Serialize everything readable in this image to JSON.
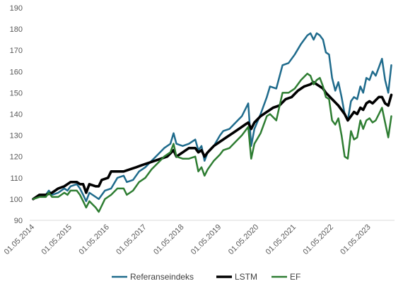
{
  "chart_data": {
    "type": "line",
    "title": "",
    "xlabel": "",
    "ylabel": "",
    "ylim": [
      90,
      190
    ],
    "yticks": [
      90,
      100,
      110,
      120,
      130,
      140,
      150,
      160,
      170,
      180,
      190
    ],
    "xlim": [
      "2014-05-01",
      "2024-01-01"
    ],
    "xticks": [
      "01.05.2014",
      "01.05.2015",
      "01.05.2016",
      "01.05.2017",
      "01.05.2018",
      "01.05.2019",
      "01.05.2020",
      "01.05.2021",
      "01.05.2022",
      "01.05.2023"
    ],
    "grid": false,
    "legend_position": "bottom",
    "series": [
      {
        "name": "Referanseindeks",
        "color": "#1f6b8c",
        "points": [
          [
            "2014-05-01",
            100
          ],
          [
            "2014-07-01",
            102
          ],
          [
            "2014-09-01",
            102
          ],
          [
            "2014-10-01",
            104
          ],
          [
            "2014-11-01",
            102
          ],
          [
            "2015-01-01",
            103
          ],
          [
            "2015-03-01",
            105
          ],
          [
            "2015-04-01",
            104
          ],
          [
            "2015-05-01",
            106
          ],
          [
            "2015-07-01",
            107
          ],
          [
            "2015-08-01",
            105
          ],
          [
            "2015-09-01",
            102
          ],
          [
            "2015-10-01",
            99
          ],
          [
            "2015-11-01",
            103
          ],
          [
            "2016-01-01",
            101
          ],
          [
            "2016-02-01",
            100
          ],
          [
            "2016-04-01",
            104
          ],
          [
            "2016-06-01",
            105
          ],
          [
            "2016-08-01",
            110
          ],
          [
            "2016-10-01",
            111
          ],
          [
            "2016-11-01",
            108
          ],
          [
            "2017-01-01",
            109
          ],
          [
            "2017-03-01",
            113
          ],
          [
            "2017-05-01",
            115
          ],
          [
            "2017-07-01",
            118
          ],
          [
            "2017-09-01",
            121
          ],
          [
            "2017-11-01",
            124
          ],
          [
            "2018-01-01",
            126
          ],
          [
            "2018-02-01",
            131
          ],
          [
            "2018-03-01",
            126
          ],
          [
            "2018-05-01",
            125
          ],
          [
            "2018-07-01",
            126
          ],
          [
            "2018-09-01",
            128
          ],
          [
            "2018-10-01",
            123
          ],
          [
            "2018-11-01",
            125
          ],
          [
            "2018-12-01",
            118
          ],
          [
            "2019-01-01",
            122
          ],
          [
            "2019-03-01",
            125
          ],
          [
            "2019-05-01",
            130
          ],
          [
            "2019-06-01",
            132
          ],
          [
            "2019-08-01",
            133
          ],
          [
            "2019-10-01",
            136
          ],
          [
            "2019-12-01",
            139
          ],
          [
            "2020-02-01",
            145
          ],
          [
            "2020-03-01",
            125
          ],
          [
            "2020-04-01",
            133
          ],
          [
            "2020-06-01",
            140
          ],
          [
            "2020-08-01",
            148
          ],
          [
            "2020-09-01",
            153
          ],
          [
            "2020-11-01",
            152
          ],
          [
            "2021-01-01",
            163
          ],
          [
            "2021-03-01",
            164
          ],
          [
            "2021-05-01",
            168
          ],
          [
            "2021-07-01",
            173
          ],
          [
            "2021-09-01",
            177
          ],
          [
            "2021-10-01",
            178
          ],
          [
            "2021-11-01",
            175
          ],
          [
            "2021-12-01",
            178
          ],
          [
            "2022-01-01",
            177
          ],
          [
            "2022-02-01",
            175
          ],
          [
            "2022-03-01",
            169
          ],
          [
            "2022-04-01",
            168
          ],
          [
            "2022-05-01",
            157
          ],
          [
            "2022-06-01",
            151
          ],
          [
            "2022-07-01",
            155
          ],
          [
            "2022-08-01",
            148
          ],
          [
            "2022-09-01",
            140
          ],
          [
            "2022-10-01",
            137
          ],
          [
            "2022-11-01",
            146
          ],
          [
            "2022-12-01",
            148
          ],
          [
            "2023-01-01",
            147
          ],
          [
            "2023-02-01",
            153
          ],
          [
            "2023-03-01",
            150
          ],
          [
            "2023-04-01",
            157
          ],
          [
            "2023-05-01",
            156
          ],
          [
            "2023-06-01",
            160
          ],
          [
            "2023-07-01",
            158
          ],
          [
            "2023-08-01",
            162
          ],
          [
            "2023-09-01",
            166
          ],
          [
            "2023-10-01",
            156
          ],
          [
            "2023-11-01",
            150
          ],
          [
            "2023-12-01",
            163
          ]
        ]
      },
      {
        "name": "LSTM",
        "color": "#000000",
        "points": [
          [
            "2014-05-01",
            100
          ],
          [
            "2014-07-01",
            102
          ],
          [
            "2014-09-01",
            102
          ],
          [
            "2014-11-01",
            103
          ],
          [
            "2015-01-01",
            105
          ],
          [
            "2015-03-01",
            106
          ],
          [
            "2015-04-01",
            107
          ],
          [
            "2015-05-01",
            108
          ],
          [
            "2015-07-01",
            108
          ],
          [
            "2015-08-01",
            107
          ],
          [
            "2015-09-01",
            107
          ],
          [
            "2015-10-01",
            103
          ],
          [
            "2015-11-01",
            107
          ],
          [
            "2016-01-01",
            106
          ],
          [
            "2016-02-01",
            106
          ],
          [
            "2016-03-01",
            109
          ],
          [
            "2016-05-01",
            110
          ],
          [
            "2016-06-01",
            113
          ],
          [
            "2016-08-01",
            113
          ],
          [
            "2016-10-01",
            113
          ],
          [
            "2016-12-01",
            114
          ],
          [
            "2017-02-01",
            115
          ],
          [
            "2017-04-01",
            116
          ],
          [
            "2017-06-01",
            117
          ],
          [
            "2017-08-01",
            118
          ],
          [
            "2017-10-01",
            119
          ],
          [
            "2017-12-01",
            120
          ],
          [
            "2018-02-01",
            123
          ],
          [
            "2018-03-01",
            120
          ],
          [
            "2018-05-01",
            122
          ],
          [
            "2018-07-01",
            124
          ],
          [
            "2018-09-01",
            124
          ],
          [
            "2018-10-01",
            122
          ],
          [
            "2018-11-01",
            123
          ],
          [
            "2018-12-01",
            120
          ],
          [
            "2019-01-01",
            122
          ],
          [
            "2019-03-01",
            125
          ],
          [
            "2019-05-01",
            127
          ],
          [
            "2019-07-01",
            129
          ],
          [
            "2019-09-01",
            131
          ],
          [
            "2019-11-01",
            133
          ],
          [
            "2020-01-01",
            135
          ],
          [
            "2020-02-01",
            136
          ],
          [
            "2020-03-01",
            133
          ],
          [
            "2020-04-01",
            136
          ],
          [
            "2020-06-01",
            139
          ],
          [
            "2020-08-01",
            141
          ],
          [
            "2020-10-01",
            143
          ],
          [
            "2020-12-01",
            144
          ],
          [
            "2021-02-01",
            147
          ],
          [
            "2021-04-01",
            148
          ],
          [
            "2021-06-01",
            151
          ],
          [
            "2021-08-01",
            153
          ],
          [
            "2021-10-01",
            154
          ],
          [
            "2021-11-01",
            155
          ],
          [
            "2021-12-01",
            154
          ],
          [
            "2022-02-01",
            152
          ],
          [
            "2022-03-01",
            150
          ],
          [
            "2022-05-01",
            147
          ],
          [
            "2022-07-01",
            144
          ],
          [
            "2022-09-01",
            140
          ],
          [
            "2022-10-01",
            137
          ],
          [
            "2022-11-01",
            139
          ],
          [
            "2022-12-01",
            141
          ],
          [
            "2023-01-01",
            140
          ],
          [
            "2023-02-01",
            143
          ],
          [
            "2023-03-01",
            142
          ],
          [
            "2023-04-01",
            145
          ],
          [
            "2023-05-01",
            146
          ],
          [
            "2023-06-01",
            145
          ],
          [
            "2023-08-01",
            148
          ],
          [
            "2023-09-01",
            148
          ],
          [
            "2023-10-01",
            145
          ],
          [
            "2023-11-01",
            144
          ],
          [
            "2023-12-01",
            149
          ]
        ]
      },
      {
        "name": "EF",
        "color": "#2e7d32",
        "points": [
          [
            "2014-05-01",
            100
          ],
          [
            "2014-07-01",
            101
          ],
          [
            "2014-09-01",
            101
          ],
          [
            "2014-10-01",
            103
          ],
          [
            "2014-11-01",
            101
          ],
          [
            "2015-01-01",
            101
          ],
          [
            "2015-03-01",
            103
          ],
          [
            "2015-04-01",
            102
          ],
          [
            "2015-05-01",
            104
          ],
          [
            "2015-07-01",
            104
          ],
          [
            "2015-08-01",
            102
          ],
          [
            "2015-09-01",
            99
          ],
          [
            "2015-10-01",
            96
          ],
          [
            "2015-11-01",
            99
          ],
          [
            "2016-01-01",
            96
          ],
          [
            "2016-02-01",
            94
          ],
          [
            "2016-04-01",
            100
          ],
          [
            "2016-06-01",
            102
          ],
          [
            "2016-08-01",
            105
          ],
          [
            "2016-10-01",
            105
          ],
          [
            "2016-11-01",
            102
          ],
          [
            "2017-01-01",
            104
          ],
          [
            "2017-03-01",
            108
          ],
          [
            "2017-05-01",
            110
          ],
          [
            "2017-07-01",
            114
          ],
          [
            "2017-09-01",
            117
          ],
          [
            "2017-11-01",
            120
          ],
          [
            "2018-01-01",
            122
          ],
          [
            "2018-02-01",
            126
          ],
          [
            "2018-03-01",
            120
          ],
          [
            "2018-05-01",
            119
          ],
          [
            "2018-07-01",
            119
          ],
          [
            "2018-09-01",
            120
          ],
          [
            "2018-10-01",
            113
          ],
          [
            "2018-11-01",
            115
          ],
          [
            "2018-12-01",
            111
          ],
          [
            "2019-01-01",
            114
          ],
          [
            "2019-03-01",
            118
          ],
          [
            "2019-05-01",
            121
          ],
          [
            "2019-06-01",
            123
          ],
          [
            "2019-08-01",
            124
          ],
          [
            "2019-10-01",
            127
          ],
          [
            "2019-12-01",
            130
          ],
          [
            "2020-02-01",
            134
          ],
          [
            "2020-03-01",
            119
          ],
          [
            "2020-04-01",
            126
          ],
          [
            "2020-06-01",
            131
          ],
          [
            "2020-08-01",
            139
          ],
          [
            "2020-09-01",
            140
          ],
          [
            "2020-11-01",
            137
          ],
          [
            "2021-01-01",
            150
          ],
          [
            "2021-03-01",
            150
          ],
          [
            "2021-05-01",
            152
          ],
          [
            "2021-07-01",
            156
          ],
          [
            "2021-09-01",
            159
          ],
          [
            "2021-10-01",
            158
          ],
          [
            "2021-11-01",
            154
          ],
          [
            "2021-12-01",
            156
          ],
          [
            "2022-01-01",
            157
          ],
          [
            "2022-02-01",
            153
          ],
          [
            "2022-03-01",
            148
          ],
          [
            "2022-04-01",
            147
          ],
          [
            "2022-05-01",
            137
          ],
          [
            "2022-06-01",
            135
          ],
          [
            "2022-07-01",
            138
          ],
          [
            "2022-08-01",
            130
          ],
          [
            "2022-09-01",
            120
          ],
          [
            "2022-10-01",
            119
          ],
          [
            "2022-11-01",
            132
          ],
          [
            "2022-12-01",
            128
          ],
          [
            "2023-01-01",
            129
          ],
          [
            "2023-02-01",
            137
          ],
          [
            "2023-03-01",
            133
          ],
          [
            "2023-04-01",
            137
          ],
          [
            "2023-05-01",
            138
          ],
          [
            "2023-06-01",
            136
          ],
          [
            "2023-07-01",
            137
          ],
          [
            "2023-08-01",
            140
          ],
          [
            "2023-09-01",
            143
          ],
          [
            "2023-10-01",
            136
          ],
          [
            "2023-11-01",
            129
          ],
          [
            "2023-12-01",
            139
          ]
        ]
      }
    ]
  }
}
